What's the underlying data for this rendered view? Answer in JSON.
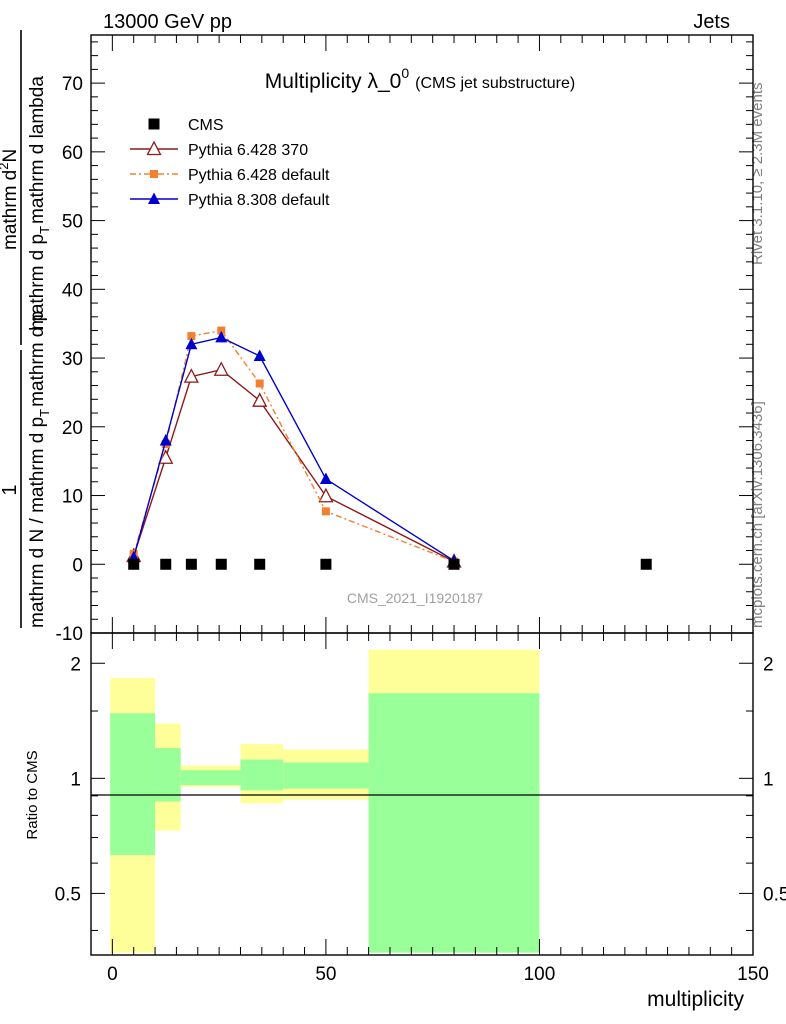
{
  "header": {
    "left": "13000 GeV pp",
    "right": "Jets"
  },
  "side_labels": {
    "upper": "Rivet 3.1.10, ≥ 2.3M events",
    "lower": "mcplots.cern.ch [arXiv:1306.3436]"
  },
  "watermark": "CMS_2021_I1920187",
  "colors": {
    "cms": "#000000",
    "pythia6_370": "#8b1a1a",
    "pythia6_default": "#f28030",
    "pythia8": "#0000cc",
    "band_outer": "#ffff99",
    "band_inner": "#99ff99"
  },
  "chart_data": [
    {
      "type": "line",
      "title_main": "Multiplicity λ_0",
      "title_sup": "0",
      "title_sub": "(CMS jet substructure)",
      "ylabel": {
        "numerator": "1",
        "denominator": "mathrm d N / mathrm d p_T mathrm d p_T mathrm d lambda",
        "rhs_numerator": "mathrm d^2N",
        "rhs_denominator": "mathrm d p_T mathrm d lambda"
      },
      "ylabel_parts": {
        "frac1_num": "1",
        "frac1_den_a": "mathrm d N / mathrm d p",
        "frac1_den_sub": "T",
        "frac1_den_b": "mathrm d p",
        "frac2_num": "mathrm d",
        "frac2_num_sup": "2",
        "frac2_num_b": "N",
        "frac2_den_a": "mathrm d p",
        "frac2_den_sub": "T",
        "frac2_den_b": "mathrm d lambda"
      },
      "xlim": [
        -5,
        150
      ],
      "ylim": [
        -10,
        77
      ],
      "y_ticks": [
        -10,
        0,
        10,
        20,
        30,
        40,
        50,
        60,
        70
      ],
      "x_ticks": [
        0,
        50,
        100,
        150
      ],
      "legend_position": "top-left",
      "series": [
        {
          "name": "CMS",
          "marker": "square",
          "x": [
            5,
            12.5,
            18.5,
            25.5,
            34.5,
            50,
            80,
            125
          ],
          "y": [
            0,
            0,
            0,
            0,
            0,
            0,
            0,
            0
          ]
        },
        {
          "name": "Pythia 6.428 370",
          "marker": "triangle-open",
          "x": [
            5,
            12.5,
            18.5,
            25.5,
            34.5,
            50,
            80
          ],
          "y": [
            1.2,
            15.5,
            27.3,
            28.3,
            23.8,
            9.9,
            0.4
          ]
        },
        {
          "name": "Pythia 6.428 default",
          "marker": "square-small",
          "dashed": true,
          "x": [
            5,
            12.5,
            18.5,
            25.5,
            34.5,
            50,
            80
          ],
          "y": [
            1.5,
            17.5,
            33.2,
            34.0,
            26.3,
            7.7,
            0.4
          ]
        },
        {
          "name": "Pythia 8.308 default",
          "marker": "triangle",
          "x": [
            5,
            12.5,
            18.5,
            25.5,
            34.5,
            50,
            80
          ],
          "y": [
            1.0,
            18.0,
            32.0,
            33.0,
            30.3,
            12.4,
            0.5
          ]
        }
      ]
    },
    {
      "type": "area",
      "ylabel": "Ratio to CMS",
      "xlabel": "multiplicity",
      "xlim": [
        -5,
        150
      ],
      "ylim": [
        0.345,
        2.4
      ],
      "y_log": true,
      "y_ticks": [
        0.5,
        1,
        2
      ],
      "x_ticks": [
        0,
        50,
        100,
        150
      ],
      "bins": [
        {
          "x0": -0.5,
          "x1": 10,
          "outer": [
            0.35,
            1.83
          ],
          "inner": [
            0.63,
            1.48
          ]
        },
        {
          "x0": 10,
          "x1": 16,
          "outer": [
            0.73,
            1.39
          ],
          "inner": [
            0.87,
            1.2
          ]
        },
        {
          "x0": 16,
          "x1": 30,
          "outer": [
            0.95,
            1.08
          ],
          "inner": [
            0.96,
            1.05
          ]
        },
        {
          "x0": 30,
          "x1": 40,
          "outer": [
            0.86,
            1.23
          ],
          "inner": [
            0.93,
            1.12
          ]
        },
        {
          "x0": 40,
          "x1": 60,
          "outer": [
            0.88,
            1.19
          ],
          "inner": [
            0.94,
            1.1
          ]
        },
        {
          "x0": 60,
          "x1": 100,
          "outer": [
            0.35,
            2.17
          ],
          "inner": [
            0.35,
            1.67
          ]
        }
      ],
      "reference_line": 1
    }
  ]
}
